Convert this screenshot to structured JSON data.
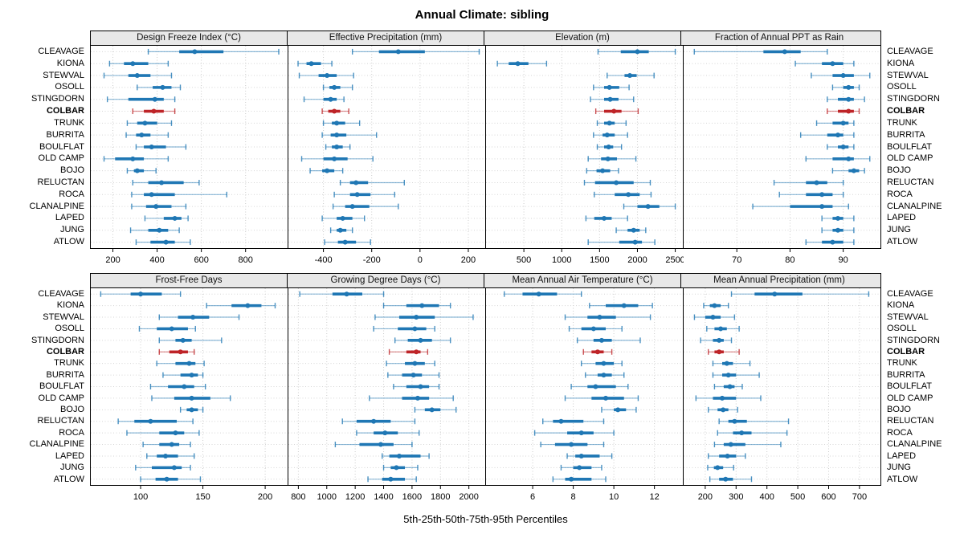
{
  "title": "Annual Climate: sibling",
  "caption": "5th-25th-50th-75th-95th Percentiles",
  "colors": {
    "series": "#1F77B4",
    "highlight": "#BE2428",
    "panel_header_bg": "#E8E8E8",
    "grid_vertical": "#CCCCCC",
    "grid_horizontal": "#D6D6D6",
    "border": "#000000"
  },
  "highlight_site": "COLBAR",
  "chart_data": {
    "type": "scatter",
    "subtype": "percentile-interval-dotplot",
    "percentiles": [
      "5th",
      "25th",
      "50th",
      "75th",
      "95th"
    ],
    "legend_position": "none",
    "grid": "dotted",
    "categories": [
      "CLEAVAGE",
      "KIONA",
      "STEWVAL",
      "OSOLL",
      "STINGDORN",
      "COLBAR",
      "TRUNK",
      "BURRITA",
      "BOULFLAT",
      "OLD CAMP",
      "BOJO",
      "RELUCTAN",
      "ROCA",
      "CLANALPINE",
      "LAPED",
      "JUNG",
      "ATLOW"
    ],
    "panels": [
      {
        "title": "Design Freeze Index (°C)",
        "xlim": [
          100,
          990
        ],
        "ticks": [
          200,
          400,
          600,
          800
        ],
        "tick_labels": [
          "200",
          "400",
          "600",
          "800"
        ],
        "values": [
          [
            360,
            500,
            570,
            700,
            950
          ],
          [
            185,
            250,
            290,
            360,
            450
          ],
          [
            160,
            270,
            310,
            370,
            465
          ],
          [
            310,
            380,
            425,
            465,
            505
          ],
          [
            175,
            270,
            390,
            430,
            480
          ],
          [
            290,
            340,
            385,
            430,
            480
          ],
          [
            265,
            310,
            345,
            400,
            465
          ],
          [
            260,
            305,
            330,
            370,
            450
          ],
          [
            305,
            340,
            375,
            440,
            530
          ],
          [
            160,
            210,
            290,
            340,
            450
          ],
          [
            265,
            295,
            310,
            340,
            395
          ],
          [
            290,
            360,
            420,
            520,
            590
          ],
          [
            285,
            340,
            375,
            480,
            715
          ],
          [
            285,
            350,
            395,
            465,
            530
          ],
          [
            345,
            430,
            480,
            510,
            540
          ],
          [
            280,
            360,
            410,
            450,
            500
          ],
          [
            305,
            370,
            440,
            480,
            550
          ]
        ]
      },
      {
        "title": "Effective Precipitation (mm)",
        "xlim": [
          -545,
          270
        ],
        "ticks": [
          -400,
          -200,
          0,
          200
        ],
        "tick_labels": [
          "-400",
          "-200",
          "0",
          "200"
        ],
        "values": [
          [
            -280,
            -170,
            -90,
            20,
            245
          ],
          [
            -505,
            -470,
            -450,
            -410,
            -365
          ],
          [
            -500,
            -420,
            -385,
            -345,
            -275
          ],
          [
            -400,
            -375,
            -355,
            -330,
            -280
          ],
          [
            -480,
            -400,
            -370,
            -345,
            -315
          ],
          [
            -405,
            -380,
            -355,
            -330,
            -295
          ],
          [
            -400,
            -365,
            -345,
            -310,
            -250
          ],
          [
            -405,
            -370,
            -345,
            -305,
            -180
          ],
          [
            -390,
            -365,
            -345,
            -320,
            -290
          ],
          [
            -490,
            -400,
            -355,
            -300,
            -195
          ],
          [
            -455,
            -405,
            -385,
            -355,
            -320
          ],
          [
            -330,
            -290,
            -265,
            -215,
            -65
          ],
          [
            -355,
            -290,
            -260,
            -205,
            -105
          ],
          [
            -360,
            -310,
            -280,
            -210,
            -90
          ],
          [
            -405,
            -345,
            -320,
            -280,
            -230
          ],
          [
            -370,
            -345,
            -330,
            -305,
            -280
          ],
          [
            -395,
            -340,
            -310,
            -265,
            -205
          ]
        ]
      },
      {
        "title": "Elevation (m)",
        "xlim": [
          0,
          2600
        ],
        "ticks": [
          500,
          1000,
          1500,
          2000,
          2500
        ],
        "tick_labels": [
          "500",
          "1000",
          "1500",
          "2000",
          "2500"
        ],
        "values": [
          [
            1480,
            1780,
            2000,
            2150,
            2500
          ],
          [
            150,
            300,
            420,
            560,
            800
          ],
          [
            1600,
            1830,
            1900,
            1990,
            2220
          ],
          [
            1420,
            1560,
            1630,
            1760,
            1890
          ],
          [
            1380,
            1560,
            1640,
            1750,
            1950
          ],
          [
            1450,
            1560,
            1690,
            1790,
            2010
          ],
          [
            1470,
            1560,
            1630,
            1700,
            1850
          ],
          [
            1420,
            1540,
            1600,
            1700,
            1870
          ],
          [
            1470,
            1560,
            1620,
            1680,
            1790
          ],
          [
            1350,
            1520,
            1610,
            1730,
            1980
          ],
          [
            1330,
            1460,
            1540,
            1640,
            1750
          ],
          [
            1300,
            1440,
            1720,
            1950,
            2170
          ],
          [
            1430,
            1700,
            1880,
            2030,
            2180
          ],
          [
            1820,
            2000,
            2140,
            2290,
            2500
          ],
          [
            1320,
            1430,
            1560,
            1660,
            1870
          ],
          [
            1720,
            1870,
            1950,
            2030,
            2110
          ],
          [
            1350,
            1760,
            1970,
            2060,
            2230
          ]
        ]
      },
      {
        "title": "Fraction of Annual PPT as Rain",
        "xlim": [
          60,
          97
        ],
        "ticks": [
          70,
          80,
          90
        ],
        "tick_labels": [
          "70",
          "80",
          "90"
        ],
        "values": [
          [
            62,
            75,
            79,
            82,
            87
          ],
          [
            81,
            86,
            88,
            90,
            92
          ],
          [
            84,
            88,
            90,
            92,
            95
          ],
          [
            88,
            90,
            91,
            92,
            93
          ],
          [
            87,
            89,
            91,
            92,
            94
          ],
          [
            87,
            89,
            91,
            92,
            93
          ],
          [
            85,
            88,
            90,
            91,
            92
          ],
          [
            82,
            87,
            89,
            90,
            92
          ],
          [
            87,
            89,
            90,
            91,
            92
          ],
          [
            83,
            88,
            91,
            92,
            95
          ],
          [
            88,
            91,
            92,
            93,
            94
          ],
          [
            77,
            83,
            85,
            87,
            90
          ],
          [
            78,
            83,
            86,
            88,
            90
          ],
          [
            73,
            80,
            86,
            88,
            91
          ],
          [
            86,
            88,
            89,
            90,
            92
          ],
          [
            86,
            88,
            89,
            90,
            92
          ],
          [
            83,
            86,
            88,
            90,
            92
          ]
        ]
      },
      {
        "title": "Frost-Free Days",
        "xlim": [
          60,
          218
        ],
        "ticks": [
          100,
          150,
          200
        ],
        "tick_labels": [
          "100",
          "150",
          "200"
        ],
        "values": [
          [
            68,
            92,
            100,
            117,
            132
          ],
          [
            153,
            173,
            186,
            197,
            208
          ],
          [
            115,
            130,
            142,
            155,
            179
          ],
          [
            99,
            113,
            125,
            138,
            144
          ],
          [
            115,
            128,
            134,
            141,
            165
          ],
          [
            115,
            123,
            132,
            138,
            143
          ],
          [
            113,
            128,
            139,
            144,
            151
          ],
          [
            118,
            132,
            141,
            146,
            150
          ],
          [
            108,
            122,
            135,
            143,
            152
          ],
          [
            109,
            127,
            141,
            156,
            172
          ],
          [
            132,
            137,
            141,
            146,
            150
          ],
          [
            82,
            95,
            108,
            129,
            142
          ],
          [
            89,
            115,
            128,
            135,
            147
          ],
          [
            102,
            115,
            125,
            131,
            140
          ],
          [
            105,
            113,
            120,
            130,
            143
          ],
          [
            96,
            109,
            127,
            133,
            140
          ],
          [
            100,
            112,
            121,
            130,
            148
          ]
        ]
      },
      {
        "title": "Growing Degree Days (°C)",
        "xlim": [
          730,
          2115
        ],
        "ticks": [
          800,
          1000,
          1200,
          1400,
          1600,
          1800,
          2000
        ],
        "tick_labels": [
          "800",
          "1000",
          "1200",
          "1400",
          "1600",
          "1800",
          "2000"
        ],
        "values": [
          [
            810,
            1040,
            1140,
            1250,
            1400
          ],
          [
            1400,
            1560,
            1670,
            1790,
            1870
          ],
          [
            1340,
            1510,
            1630,
            1760,
            2030
          ],
          [
            1330,
            1500,
            1620,
            1700,
            1760
          ],
          [
            1480,
            1570,
            1660,
            1740,
            1870
          ],
          [
            1440,
            1560,
            1630,
            1660,
            1710
          ],
          [
            1420,
            1550,
            1620,
            1690,
            1760
          ],
          [
            1430,
            1530,
            1610,
            1670,
            1790
          ],
          [
            1470,
            1560,
            1660,
            1720,
            1790
          ],
          [
            1300,
            1530,
            1640,
            1720,
            1890
          ],
          [
            1620,
            1690,
            1740,
            1800,
            1910
          ],
          [
            1110,
            1210,
            1330,
            1450,
            1620
          ],
          [
            1210,
            1330,
            1410,
            1500,
            1650
          ],
          [
            1060,
            1230,
            1380,
            1470,
            1600
          ],
          [
            1390,
            1440,
            1510,
            1660,
            1720
          ],
          [
            1400,
            1450,
            1490,
            1550,
            1640
          ],
          [
            1290,
            1390,
            1450,
            1550,
            1630
          ]
        ]
      },
      {
        "title": "Mean Annual Air Temperature (°C)",
        "xlim": [
          3.7,
          13.4
        ],
        "ticks": [
          6,
          8,
          10,
          12
        ],
        "tick_labels": [
          "6",
          "8",
          "10",
          "12"
        ],
        "values": [
          [
            4.6,
            5.5,
            6.3,
            7.2,
            8.4
          ],
          [
            8.8,
            9.6,
            10.5,
            11.2,
            11.9
          ],
          [
            7.6,
            8.7,
            9.3,
            10.1,
            11.8
          ],
          [
            7.8,
            8.4,
            9.0,
            9.6,
            10.4
          ],
          [
            8.2,
            9.0,
            9.4,
            9.9,
            11.3
          ],
          [
            8.5,
            8.9,
            9.2,
            9.5,
            9.9
          ],
          [
            8.4,
            9.1,
            9.5,
            10.0,
            10.4
          ],
          [
            8.6,
            9.2,
            9.5,
            9.9,
            10.5
          ],
          [
            7.9,
            8.7,
            9.1,
            10.1,
            10.7
          ],
          [
            7.6,
            8.9,
            9.6,
            10.5,
            11.2
          ],
          [
            9.4,
            10.0,
            10.2,
            10.6,
            11.1
          ],
          [
            6.5,
            7.0,
            7.4,
            8.5,
            9.5
          ],
          [
            6.1,
            7.7,
            8.4,
            9.0,
            10.0
          ],
          [
            6.4,
            7.1,
            7.9,
            8.7,
            9.5
          ],
          [
            7.7,
            8.1,
            8.4,
            9.3,
            9.9
          ],
          [
            7.4,
            8.0,
            8.3,
            8.9,
            9.4
          ],
          [
            7.0,
            7.6,
            7.9,
            8.9,
            9.6
          ]
        ]
      },
      {
        "title": "Mean Annual Precipitation (mm)",
        "xlim": [
          130,
          768
        ],
        "ticks": [
          200,
          300,
          400,
          500,
          600,
          700
        ],
        "tick_labels": [
          "200",
          "300",
          "400",
          "500",
          "600",
          "700"
        ],
        "values": [
          [
            285,
            360,
            425,
            515,
            730
          ],
          [
            195,
            215,
            230,
            250,
            275
          ],
          [
            165,
            200,
            225,
            250,
            295
          ],
          [
            205,
            230,
            250,
            270,
            310
          ],
          [
            185,
            225,
            245,
            260,
            285
          ],
          [
            210,
            230,
            245,
            260,
            310
          ],
          [
            225,
            255,
            270,
            290,
            345
          ],
          [
            225,
            255,
            275,
            300,
            375
          ],
          [
            230,
            260,
            280,
            295,
            320
          ],
          [
            170,
            225,
            255,
            300,
            380
          ],
          [
            210,
            240,
            258,
            275,
            305
          ],
          [
            245,
            275,
            295,
            335,
            470
          ],
          [
            240,
            290,
            318,
            350,
            465
          ],
          [
            230,
            260,
            283,
            330,
            445
          ],
          [
            210,
            245,
            272,
            300,
            330
          ],
          [
            208,
            228,
            240,
            258,
            292
          ],
          [
            215,
            245,
            266,
            290,
            350
          ]
        ]
      }
    ]
  }
}
